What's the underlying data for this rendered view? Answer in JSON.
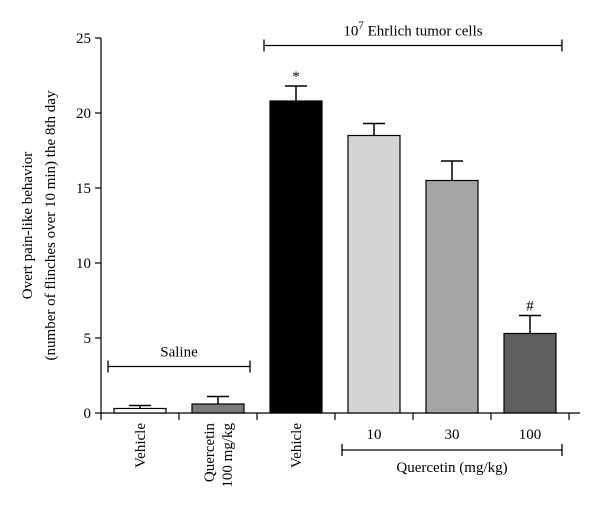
{
  "chart_data": {
    "type": "bar",
    "ylabel_lines": [
      "Overt pain-like behavior",
      "(number of flinches over 10 min) the 8th day"
    ],
    "ylim": [
      0,
      25
    ],
    "yticks": [
      0,
      5,
      10,
      15,
      20,
      25
    ],
    "categories": [
      {
        "lines": [
          "Vehicle"
        ],
        "rotated": true
      },
      {
        "lines": [
          "Quercetin",
          "100 mg/kg"
        ],
        "rotated": true
      },
      {
        "lines": [
          "Vehicle"
        ],
        "rotated": true
      },
      {
        "lines": [
          "10"
        ],
        "rotated": false
      },
      {
        "lines": [
          "30"
        ],
        "rotated": false
      },
      {
        "lines": [
          "100"
        ],
        "rotated": false
      }
    ],
    "values": [
      0.3,
      0.6,
      20.8,
      18.5,
      15.5,
      5.3
    ],
    "errors": [
      0.2,
      0.5,
      1.0,
      0.8,
      1.3,
      1.2
    ],
    "bar_colors": [
      "#ffffff",
      "#7a7a7a",
      "#000000",
      "#d4d4d4",
      "#a5a5a8",
      "#5e5e60"
    ],
    "significance": [
      "",
      "",
      "*",
      "",
      "",
      "#"
    ],
    "groups": [
      {
        "label": "Saline",
        "from": 0,
        "to": 1,
        "position": "above-bars",
        "y": 3.1
      },
      {
        "label_base": "10",
        "label_exp": "7",
        "label_rest": " Ehrlich tumor cells",
        "from": 2,
        "to": 5,
        "position": "top",
        "y": 24.5
      },
      {
        "label": "Quercetin (mg/kg)",
        "from": 3,
        "to": 5,
        "position": "below-axis"
      }
    ]
  }
}
